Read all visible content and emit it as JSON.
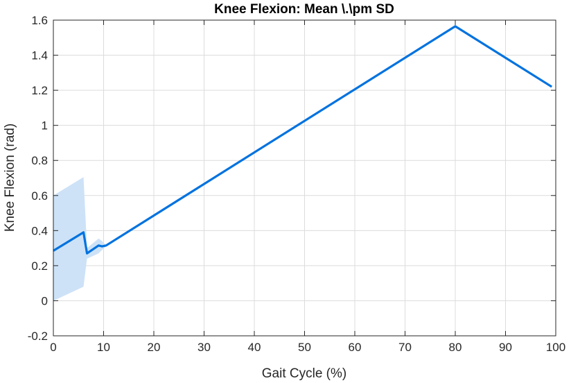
{
  "chart_data": {
    "type": "line",
    "title": "Knee Flexion: Mean \\.\\pm SD",
    "xlabel": "Gait Cycle (%)",
    "ylabel": "Knee Flexion (rad)",
    "xlim": [
      0,
      100
    ],
    "ylim": [
      -0.2,
      1.6
    ],
    "xticks": [
      "0",
      "10",
      "20",
      "30",
      "40",
      "50",
      "60",
      "70",
      "80",
      "90",
      "100"
    ],
    "yticks": [
      "-0.2",
      "0",
      "0.2",
      "0.4",
      "0.6",
      "0.8",
      "1",
      "1.2",
      "1.4",
      "1.6"
    ],
    "grid": true,
    "series": [
      {
        "color": "#0072df",
        "x": [
          0,
          6,
          6.7,
          9,
          9.7,
          10.5,
          80,
          99.2
        ],
        "y": [
          0.285,
          0.39,
          0.27,
          0.315,
          0.31,
          0.315,
          1.565,
          1.22
        ],
        "band_lower": [
          0.0,
          0.08,
          0.24,
          0.27,
          0.29,
          0.31,
          1.565,
          1.22
        ],
        "band_upper": [
          0.6,
          0.705,
          0.3,
          0.355,
          0.34,
          0.315,
          1.565,
          1.22
        ],
        "band_color": "#cde2f7"
      }
    ]
  }
}
